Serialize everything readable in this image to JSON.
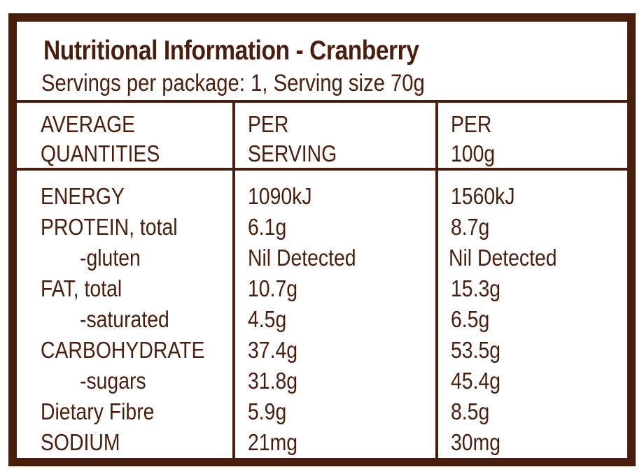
{
  "panel": {
    "title": "Nutritional Information - Cranberry",
    "subtitle": "Servings per package: 1, Serving size 70g"
  },
  "columns": {
    "quantities": [
      "AVERAGE",
      "QUANTITIES"
    ],
    "per_serving": [
      "PER",
      "SERVING"
    ],
    "per_100g": [
      "PER",
      "100g"
    ]
  },
  "rows": [
    {
      "name": "ENERGY",
      "serving": "1090kJ",
      "per100": "1560kJ"
    },
    {
      "name": "PROTEIN, total",
      "serving": "6.1g",
      "per100": "8.7g"
    },
    {
      "name": "-gluten",
      "serving": "Nil Detected",
      "per100": "Nil Detected"
    },
    {
      "name": "FAT, total",
      "serving": "10.7g",
      "per100": "15.3g"
    },
    {
      "name": "-saturated",
      "serving": "4.5g",
      "per100": "6.5g"
    },
    {
      "name": "CARBOHYDRATE",
      "serving": "37.4g",
      "per100": "53.5g"
    },
    {
      "name": "-sugars",
      "serving": "31.8g",
      "per100": "45.4g"
    },
    {
      "name": "Dietary Fibre",
      "serving": "5.9g",
      "per100": "8.5g"
    },
    {
      "name": "SODIUM",
      "serving": "21mg",
      "per100": "30mg"
    }
  ],
  "colors": {
    "ink": "#4a1e0c",
    "background": "#ffffff"
  }
}
